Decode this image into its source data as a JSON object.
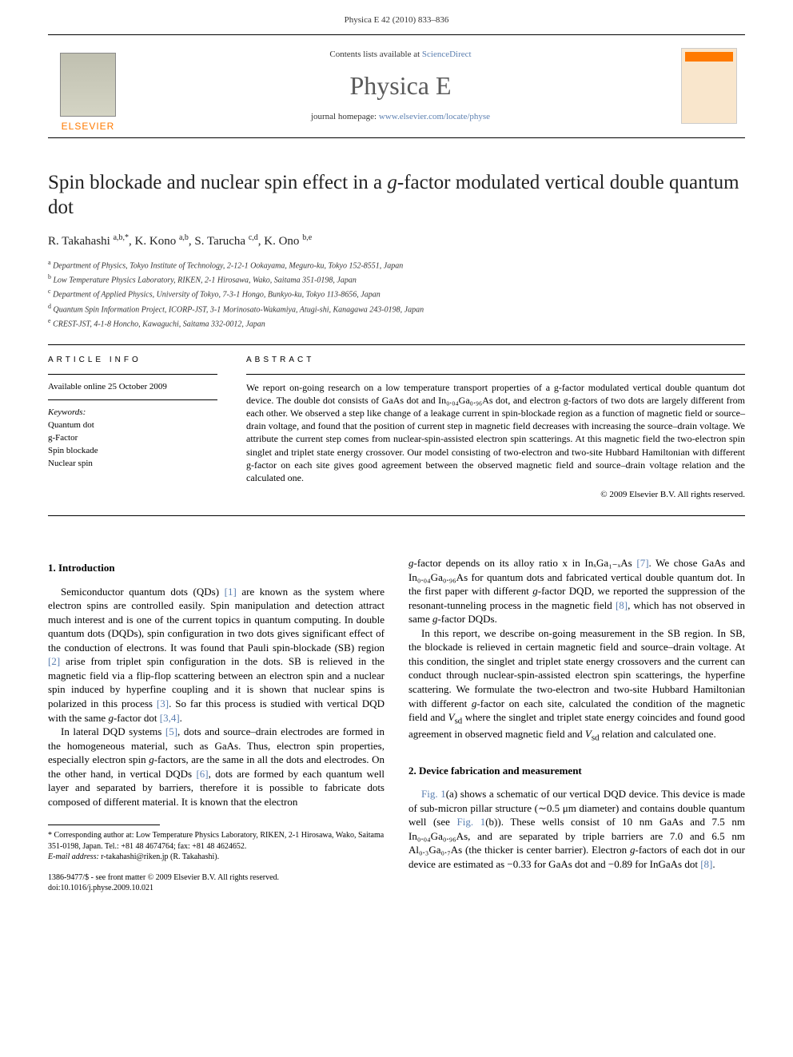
{
  "running_header": "Physica E 42 (2010) 833–836",
  "masthead": {
    "publisher_name": "ELSEVIER",
    "contents_prefix": "Contents lists available at ",
    "contents_link": "ScienceDirect",
    "journal_name": "Physica E",
    "homepage_prefix": "journal homepage: ",
    "homepage_link": "www.elsevier.com/locate/physe",
    "cover_label": "PHYSICA"
  },
  "title_before_ital": "Spin blockade and nuclear spin effect in a ",
  "title_ital": "g",
  "title_after_ital": "-factor modulated vertical double quantum dot",
  "authors_html": "R. Takahashi <sup>a,b,*</sup>, K. Kono <sup>a,b</sup>, S. Tarucha <sup>c,d</sup>, K. Ono <sup>b,e</sup>",
  "affiliations": [
    {
      "sup": "a",
      "text": "Department of Physics, Tokyo Institute of Technology, 2-12-1 Ookayama, Meguro-ku, Tokyo 152-8551, Japan"
    },
    {
      "sup": "b",
      "text": "Low Temperature Physics Laboratory, RIKEN, 2-1 Hirosawa, Wako, Saitama 351-0198, Japan"
    },
    {
      "sup": "c",
      "text": "Department of Applied Physics, University of Tokyo, 7-3-1 Hongo, Bunkyo-ku, Tokyo 113-8656, Japan"
    },
    {
      "sup": "d",
      "text": "Quantum Spin Information Project, ICORP-JST, 3-1 Morinosato-Wakamiya, Atugi-shi, Kanagawa 243-0198, Japan"
    },
    {
      "sup": "e",
      "text": "CREST-JST, 4-1-8 Honcho, Kawaguchi, Saitama 332-0012, Japan"
    }
  ],
  "article_info": {
    "heading": "ARTICLE INFO",
    "available": "Available online 25 October 2009",
    "keywords_label": "Keywords:",
    "keywords": [
      "Quantum dot",
      "g-Factor",
      "Spin blockade",
      "Nuclear spin"
    ]
  },
  "abstract": {
    "heading": "ABSTRACT",
    "text": "We report on-going research on a low temperature transport properties of a g-factor modulated vertical double quantum dot device. The double dot consists of GaAs dot and In₀.₀₄Ga₀.₉₆As dot, and electron g-factors of two dots are largely different from each other. We observed a step like change of a leakage current in spin-blockade region as a function of magnetic field or source–drain voltage, and found that the position of current step in magnetic field decreases with increasing the source–drain voltage. We attribute the current step comes from nuclear-spin-assisted electron spin scatterings. At this magnetic field the two-electron spin singlet and triplet state energy crossover. Our model consisting of two-electron and two-site Hubbard Hamiltonian with different g-factor on each site gives good agreement between the observed magnetic field and source–drain voltage relation and the calculated one.",
    "copyright": "© 2009 Elsevier B.V. All rights reserved."
  },
  "sections": {
    "intro_heading": "1. Introduction",
    "device_heading": "2. Device fabrication and measurement"
  },
  "body": {
    "p1": "Semiconductor quantum dots (QDs) [1] are known as the system where electron spins are controlled easily. Spin manipulation and detection attract much interest and is one of the current topics in quantum computing. In double quantum dots (DQDs), spin configuration in two dots gives significant effect of the conduction of electrons. It was found that Pauli spin-blockade (SB) region [2] arise from triplet spin configuration in the dots. SB is relieved in the magnetic field via a flip-flop scattering between an electron spin and a nuclear spin induced by hyperfine coupling and it is shown that nuclear spins is polarized in this process [3]. So far this process is studied with vertical DQD with the same g-factor dot [3,4].",
    "p2": "In lateral DQD systems [5], dots and source–drain electrodes are formed in the homogeneous material, such as GaAs. Thus, electron spin properties, especially electron spin g-factors, are the same in all the dots and electrodes. On the other hand, in vertical DQDs [6], dots are formed by each quantum well layer and separated by barriers, therefore it is possible to fabricate dots composed of different material. It is known that the electron",
    "p3": "g-factor depends on its alloy ratio x in InₓGa₁₋ₓAs [7]. We chose GaAs and In₀.₀₄Ga₀.₉₆As for quantum dots and fabricated vertical double quantum dot. In the first paper with different g-factor DQD, we reported the suppression of the resonant-tunneling process in the magnetic field [8], which has not observed in same g-factor DQDs.",
    "p4": "In this report, we describe on-going measurement in the SB region. In SB, the blockade is relieved in certain magnetic field and source–drain voltage. At this condition, the singlet and triplet state energy crossovers and the current can conduct through nuclear-spin-assisted electron spin scatterings, the hyperfine scattering. We formulate the two-electron and two-site Hubbard Hamiltonian with different g-factor on each site, calculated the condition of the magnetic field and Vsd where the singlet and triplet state energy coincides and found good agreement in observed magnetic field and Vsd relation and calculated one.",
    "p5": "Fig. 1(a) shows a schematic of our vertical DQD device. This device is made of sub-micron pillar structure (∼0.5 μm diameter) and contains double quantum well (see Fig. 1(b)). These wells consist of 10 nm GaAs and 7.5 nm In₀.₀₄Ga₀.₉₆As, and are separated by triple barriers are 7.0 and 6.5 nm Al₀.₃Ga₀.₇As (the thicker is center barrier). Electron g-factors of each dot in our device are estimated as −0.33 for GaAs dot and −0.89 for InGaAs dot [8]."
  },
  "footnotes": {
    "corresponding": "* Corresponding author at: Low Temperature Physics Laboratory, RIKEN, 2-1 Hirosawa, Wako, Saitama 351-0198, Japan. Tel.: +81 48 4674764; fax: +81 48 4624652.",
    "email_label": "E-mail address:",
    "email": "r-takahashi@riken.jp (R. Takahashi)."
  },
  "bottom": {
    "line1": "1386-9477/$ - see front matter © 2009 Elsevier B.V. All rights reserved.",
    "line2": "doi:10.1016/j.physe.2009.10.021"
  },
  "colors": {
    "link": "#5b7fb0",
    "publisher_orange": "#ff7a00",
    "text": "#000000",
    "background": "#ffffff"
  }
}
